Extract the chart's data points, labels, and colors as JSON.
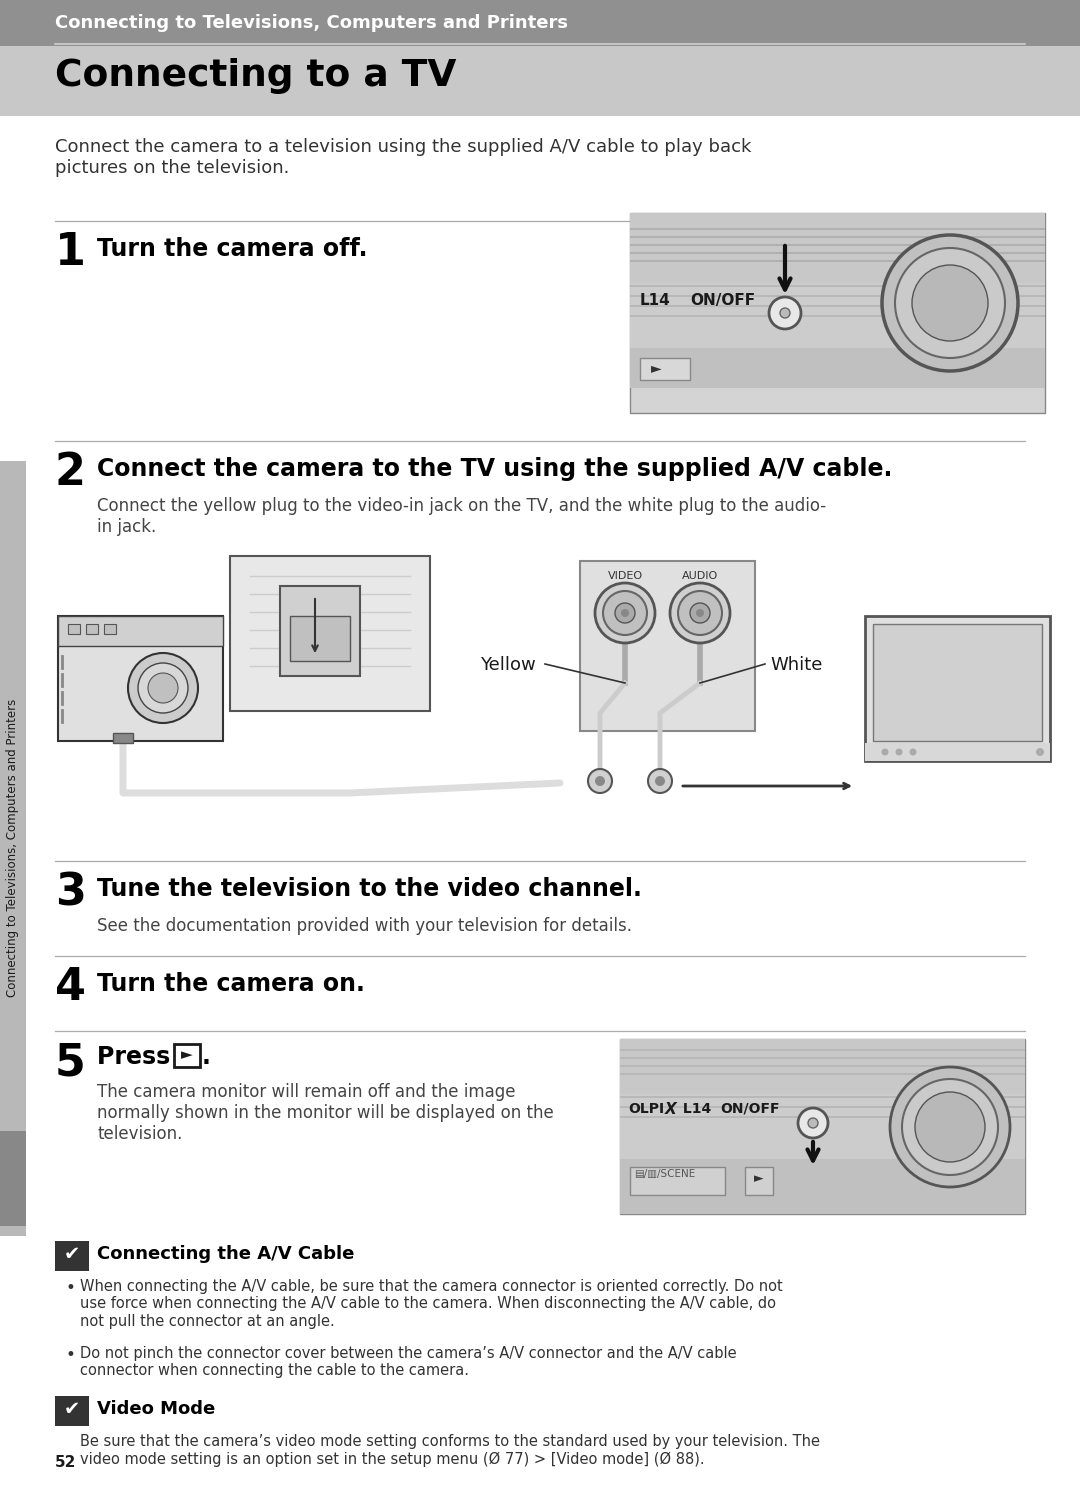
{
  "page_bg": "#ffffff",
  "header_bg": "#909090",
  "header_text": "Connecting to Televisions, Computers and Printers",
  "header_text_color": "#ffffff",
  "title": "Connecting to a TV",
  "title_color": "#1a1a1a",
  "title_bg": "#c8c8c8",
  "intro_text": "Connect the camera to a television using the supplied A/V cable to play back\npictures on the television.",
  "sidebar_text": "Connecting to Televisions, Computers and Printers",
  "sidebar_bg": "#b8b8b8",
  "page_number": "52",
  "step1_heading": "Turn the camera off.",
  "step2_heading": "Connect the camera to the TV using the supplied A/V cable.",
  "step2_body": "Connect the yellow plug to the video-in jack on the TV, and the white plug to the audio-\nin jack.",
  "step3_heading": "Tune the television to the video channel.",
  "step3_body": "See the documentation provided with your television for details.",
  "step4_heading": "Turn the camera on.",
  "step5_heading": "Press ►.",
  "step5_body": "The camera monitor will remain off and the image\nnormally shown in the monitor will be displayed on the\ntelevision.",
  "note1_title": "Connecting the A/V Cable",
  "note1_bullet1": "When connecting the A/V cable, be sure that the camera connector is oriented correctly. Do not\nuse force when connecting the A/V cable to the camera. When disconnecting the A/V cable, do\nnot pull the connector at an angle.",
  "note1_bullet2": "Do not pinch the connector cover between the camera’s A/V connector and the A/V cable\nconnector when connecting the cable to the camera.",
  "note2_title": "Video Mode",
  "video_mode_text": "Be sure that the camera’s video mode setting conforms to the standard used by your television. The\nvideo mode setting is an option set in the setup menu (Ø 77) > [Video mode] (Ø 88).",
  "line_color": "#aaaaaa",
  "step_num_color": "#1a1a1a",
  "heading_color": "#1a1a1a",
  "body_color": "#444444",
  "yellow_label": "Yellow",
  "white_label": "White",
  "video_label": "VIDEO",
  "audio_label": "AUDIO"
}
